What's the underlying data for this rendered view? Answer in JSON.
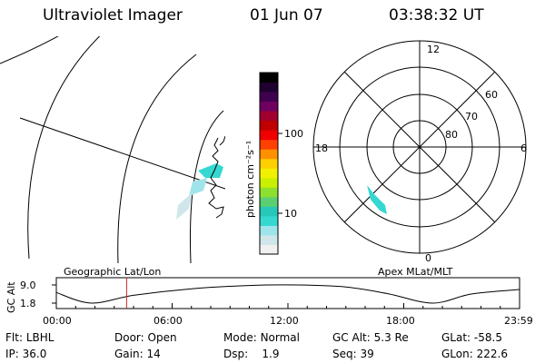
{
  "header": {
    "instrument": "Ultraviolet Imager",
    "date": "01 Jun 07",
    "time": "03:38:32 UT"
  },
  "colorbar": {
    "label": "photon cm⁻²s⁻¹",
    "ticks": [
      {
        "label": "100",
        "value": 100
      },
      {
        "label": "10",
        "value": 10
      }
    ],
    "colors": [
      "#f0f0f0",
      "#cfe6ea",
      "#9fe4ea",
      "#35d8d0",
      "#28c8b8",
      "#5ad070",
      "#8ee030",
      "#c8f000",
      "#f0f000",
      "#ffd000",
      "#ff9000",
      "#ff4000",
      "#f00000",
      "#c00000",
      "#a00030",
      "#700060",
      "#400050",
      "#200030",
      "#000000"
    ]
  },
  "map_labels": {
    "left": "Geographic Lat/Lon",
    "right": "Apex MLat/MLT"
  },
  "polar": {
    "mlt_labels": {
      "top": "12",
      "left": "18",
      "right": "6",
      "bottom": "0"
    },
    "lat_labels": [
      "60",
      "70",
      "80"
    ]
  },
  "altitude_plot": {
    "ylabel": "GC Alt",
    "yticks": [
      "9.0",
      "1.8"
    ],
    "xticks": [
      "00:00",
      "06:00",
      "12:00",
      "18:00",
      "23:59"
    ],
    "current_time_hours": 3.642,
    "orbit_samples_hours": [
      0,
      1.8,
      4,
      7,
      10,
      12.5,
      15,
      17.2,
      19.5,
      21.5,
      24
    ],
    "orbit_samples_re": [
      6.0,
      1.8,
      4.9,
      7.5,
      8.8,
      9.0,
      8.2,
      5.5,
      1.8,
      5.4,
      7.2
    ]
  },
  "info": {
    "row1": [
      {
        "key": "Flt:",
        "value": "LBHL"
      },
      {
        "key": "Door:",
        "value": "Open"
      },
      {
        "key": "Mode:",
        "value": "Normal"
      },
      {
        "key": "GC Alt:",
        "value": "5.3 Re"
      },
      {
        "key": "GLat:",
        "value": "-58.5"
      }
    ],
    "row2": [
      {
        "key": "IP:",
        "value": "36.0"
      },
      {
        "key": "Gain:",
        "value": "14"
      },
      {
        "key": "Dsp:",
        "value": "1.9"
      },
      {
        "key": "Seq:",
        "value": "39"
      },
      {
        "key": "GLon:",
        "value": "222.6"
      }
    ]
  }
}
